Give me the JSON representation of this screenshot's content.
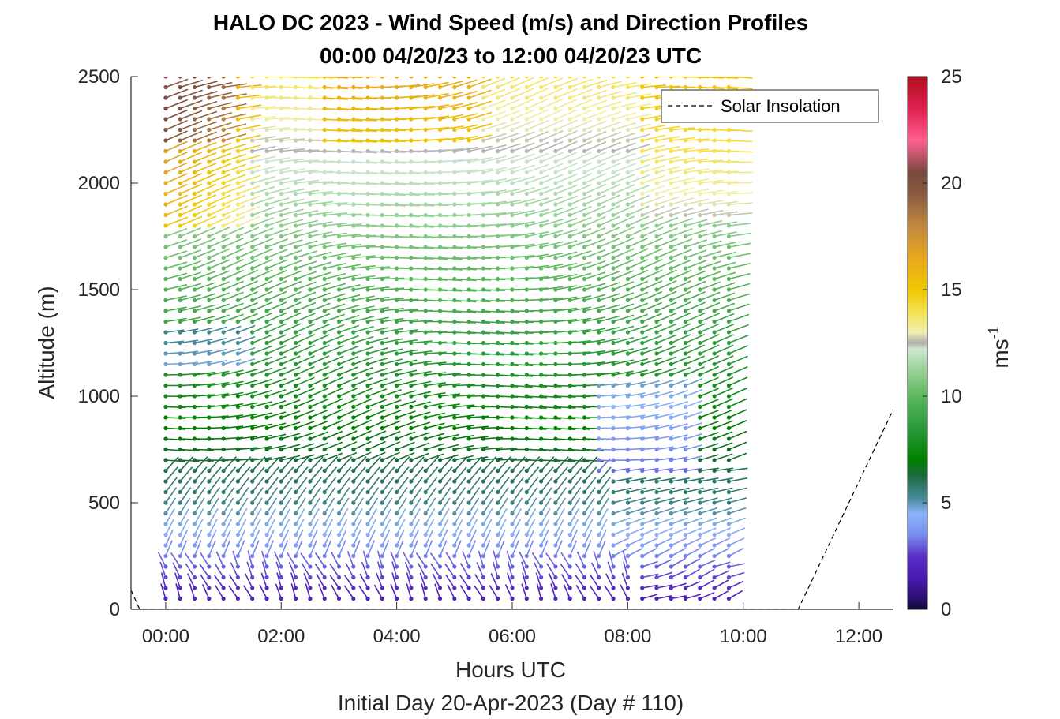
{
  "chart_data": {
    "type": "wind-barb-profile",
    "title": "HALO DC 2023 - Wind Speed (m/s) and Direction Profiles",
    "subtitle": "00:00 04/20/23 to 12:00 04/20/23  UTC",
    "xlabel": "Hours UTC",
    "xlabel2": "Initial Day 20-Apr-2023 (Day # 110)",
    "ylabel": "Altitude (m)",
    "x_ticks": [
      "00:00",
      "02:00",
      "04:00",
      "06:00",
      "08:00",
      "10:00",
      "12:00"
    ],
    "x_tick_hours": [
      0,
      2,
      4,
      6,
      8,
      10,
      12
    ],
    "xlim_hours": [
      -0.6,
      12.6
    ],
    "y_ticks": [
      "0",
      "500",
      "1000",
      "1500",
      "2000",
      "2500"
    ],
    "y_tick_values": [
      0,
      500,
      1000,
      1500,
      2000,
      2500
    ],
    "ylim": [
      0,
      2500
    ],
    "colorbar": {
      "label": "ms",
      "label_superscript": "-1",
      "ticks": [
        "0",
        "5",
        "10",
        "15",
        "20",
        "25"
      ],
      "tick_values": [
        0,
        5,
        10,
        15,
        20,
        25
      ],
      "range": [
        0,
        25
      ]
    },
    "legend": {
      "label": "Solar Insolation",
      "position": "top-right"
    },
    "profile_times_hours": [
      0.0,
      0.25,
      0.5,
      0.75,
      1.0,
      1.25,
      1.5,
      1.75,
      2.0,
      2.25,
      2.5,
      2.75,
      3.0,
      3.25,
      3.5,
      3.75,
      4.0,
      4.25,
      4.5,
      4.75,
      5.0,
      5.25,
      5.5,
      5.75,
      6.0,
      6.25,
      6.5,
      6.75,
      7.0,
      7.25,
      7.5,
      7.75,
      8.0,
      8.25,
      8.5,
      8.75,
      9.0,
      9.25,
      9.5,
      9.75
    ],
    "altitude_step_m": 50,
    "solar_insolation": {
      "hours": [
        -0.6,
        -0.45,
        10.95,
        12.6
      ],
      "altitude_equiv_m": [
        90,
        0,
        0,
        940
      ]
    }
  },
  "colors": {
    "colormap": [
      [
        0,
        "#0d0a30"
      ],
      [
        0.5,
        "#2a0f70"
      ],
      [
        1.5,
        "#4a1ab0"
      ],
      [
        2.5,
        "#5a30c8"
      ],
      [
        3.5,
        "#7a8ef0"
      ],
      [
        4.5,
        "#8ab4f8"
      ],
      [
        5.2,
        "#4a8a9a"
      ],
      [
        5.8,
        "#2f7a6a"
      ],
      [
        6.3,
        "#1a6a3a"
      ],
      [
        7,
        "#008000"
      ],
      [
        8.5,
        "#2a9a3a"
      ],
      [
        10,
        "#5cb85c"
      ],
      [
        11.5,
        "#a8d8a8"
      ],
      [
        12.2,
        "#d0e8d0"
      ],
      [
        12.5,
        "#b0b0b0"
      ],
      [
        13,
        "#f0f0b0"
      ],
      [
        14,
        "#f5e050"
      ],
      [
        15,
        "#f0c800"
      ],
      [
        16.5,
        "#e8a820"
      ],
      [
        18,
        "#c08840"
      ],
      [
        19.5,
        "#8a5a40"
      ],
      [
        20.5,
        "#7a4a40"
      ],
      [
        22,
        "#ff6090"
      ],
      [
        23.5,
        "#e02050"
      ],
      [
        25,
        "#b01020"
      ]
    ]
  }
}
